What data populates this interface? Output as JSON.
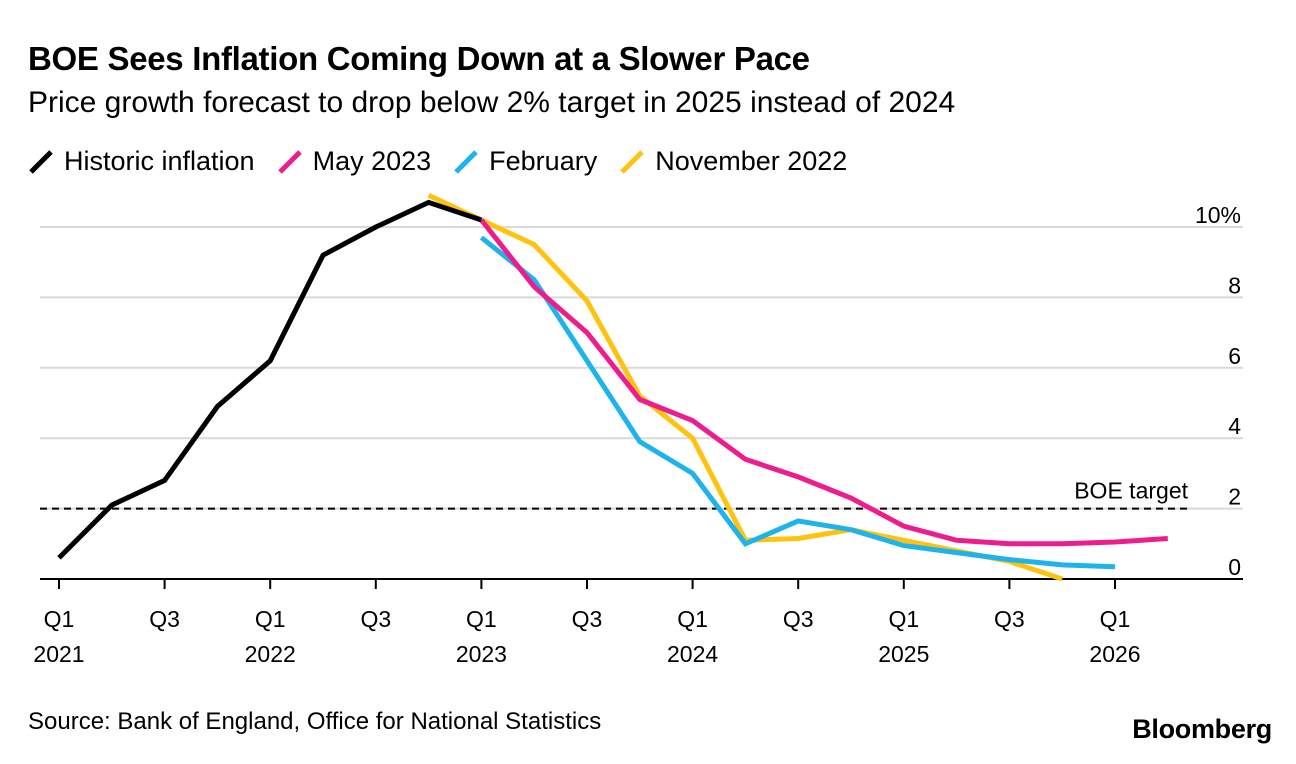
{
  "title": "BOE Sees Inflation Coming Down at a Slower Pace",
  "subtitle": "Price growth forecast to drop below 2% target in 2025 instead of 2024",
  "source": "Source: Bank of England, Office for National Statistics",
  "brand": "Bloomberg",
  "chart_data": {
    "type": "line",
    "title": "BOE Sees Inflation Coming Down at a Slower Pace",
    "subtitle": "Price growth forecast to drop below 2% target in 2025 instead of 2024",
    "xlabel": "",
    "ylabel": "",
    "x_unit": "quarter index (0 = Q1 2021)",
    "ylim": [
      0,
      10
    ],
    "y_ticks": [
      {
        "value": 0,
        "label": "0"
      },
      {
        "value": 2,
        "label": "2"
      },
      {
        "value": 4,
        "label": "4"
      },
      {
        "value": 6,
        "label": "6"
      },
      {
        "value": 8,
        "label": "8"
      },
      {
        "value": 10,
        "label": "10%"
      }
    ],
    "x_ticks": [
      {
        "q": 0,
        "line1": "Q1",
        "line2": "2021"
      },
      {
        "q": 2,
        "line1": "Q3",
        "line2": ""
      },
      {
        "q": 4,
        "line1": "Q1",
        "line2": "2022"
      },
      {
        "q": 6,
        "line1": "Q3",
        "line2": ""
      },
      {
        "q": 8,
        "line1": "Q1",
        "line2": "2023"
      },
      {
        "q": 10,
        "line1": "Q3",
        "line2": ""
      },
      {
        "q": 12,
        "line1": "Q1",
        "line2": "2024"
      },
      {
        "q": 14,
        "line1": "Q3",
        "line2": ""
      },
      {
        "q": 16,
        "line1": "Q1",
        "line2": "2025"
      },
      {
        "q": 18,
        "line1": "Q3",
        "line2": ""
      },
      {
        "q": 20,
        "line1": "Q1",
        "line2": "2026"
      }
    ],
    "reference_line": {
      "value": 2,
      "label": "BOE target",
      "style": "dashed"
    },
    "series": [
      {
        "name": "Historic inflation",
        "color": "#000000",
        "x": [
          0,
          1,
          2,
          3,
          4,
          5,
          6,
          7,
          8
        ],
        "values": [
          0.6,
          2.1,
          2.8,
          4.9,
          6.2,
          9.2,
          10.0,
          10.7,
          10.2
        ]
      },
      {
        "name": "May 2023",
        "color": "#ee1d8d",
        "x": [
          8,
          9,
          10,
          11,
          12,
          13,
          14,
          15,
          16,
          17,
          18,
          19,
          20,
          21
        ],
        "values": [
          10.2,
          8.3,
          7.0,
          5.1,
          4.5,
          3.4,
          2.9,
          2.3,
          1.5,
          1.1,
          1.0,
          1.0,
          1.05,
          1.15
        ]
      },
      {
        "name": "February",
        "color": "#1eb3ed",
        "x": [
          8,
          9,
          10,
          11,
          12,
          13,
          14,
          15,
          16,
          17,
          18,
          19,
          20
        ],
        "values": [
          9.7,
          8.5,
          6.2,
          3.9,
          3.0,
          1.0,
          1.65,
          1.4,
          0.95,
          0.75,
          0.55,
          0.4,
          0.35
        ]
      },
      {
        "name": "November 2022",
        "color": "#ffc20e",
        "x": [
          7,
          8,
          9,
          10,
          11,
          12,
          13,
          14,
          15,
          16,
          17,
          18,
          19
        ],
        "values": [
          10.9,
          10.2,
          9.5,
          7.9,
          5.2,
          4.0,
          1.1,
          1.15,
          1.4,
          1.1,
          0.8,
          0.5,
          0.0
        ]
      }
    ]
  }
}
